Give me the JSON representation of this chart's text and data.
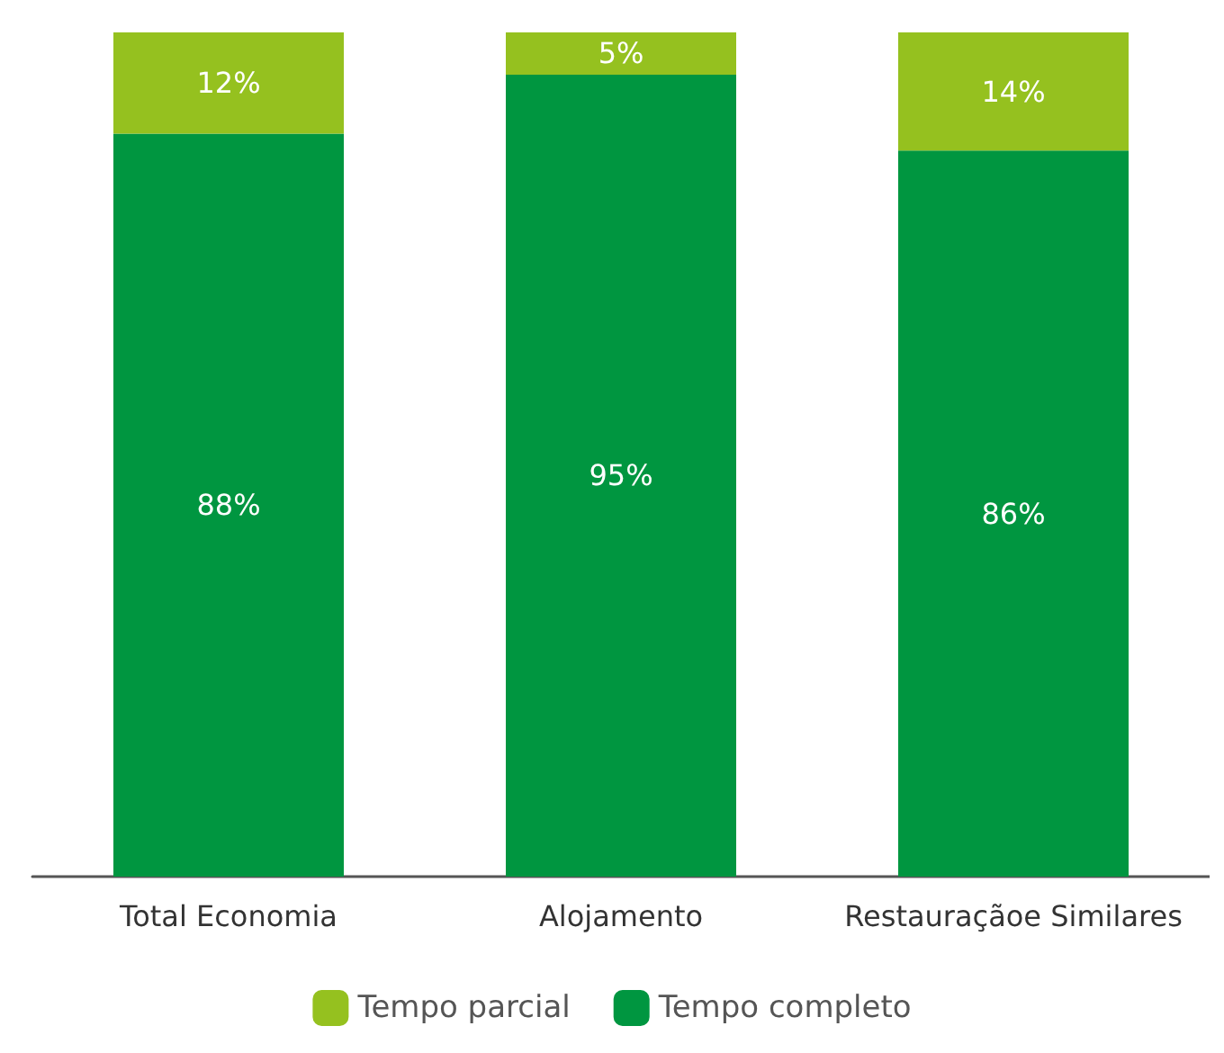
{
  "chart_data": {
    "type": "bar",
    "stacked": true,
    "categories": [
      "Total Economia",
      "Alojamento",
      "Restauraçãoe Similares"
    ],
    "series": [
      {
        "name": "Tempo completo",
        "color": "#009640",
        "values": [
          88,
          95,
          86
        ],
        "value_labels": [
          "88%",
          "95%",
          "86%"
        ]
      },
      {
        "name": "Tempo parcial",
        "color": "#95c11f",
        "values": [
          12,
          5,
          14
        ],
        "value_labels": [
          "12%",
          "5%",
          "14%"
        ]
      }
    ],
    "legend": "bottom",
    "grid": false
  }
}
